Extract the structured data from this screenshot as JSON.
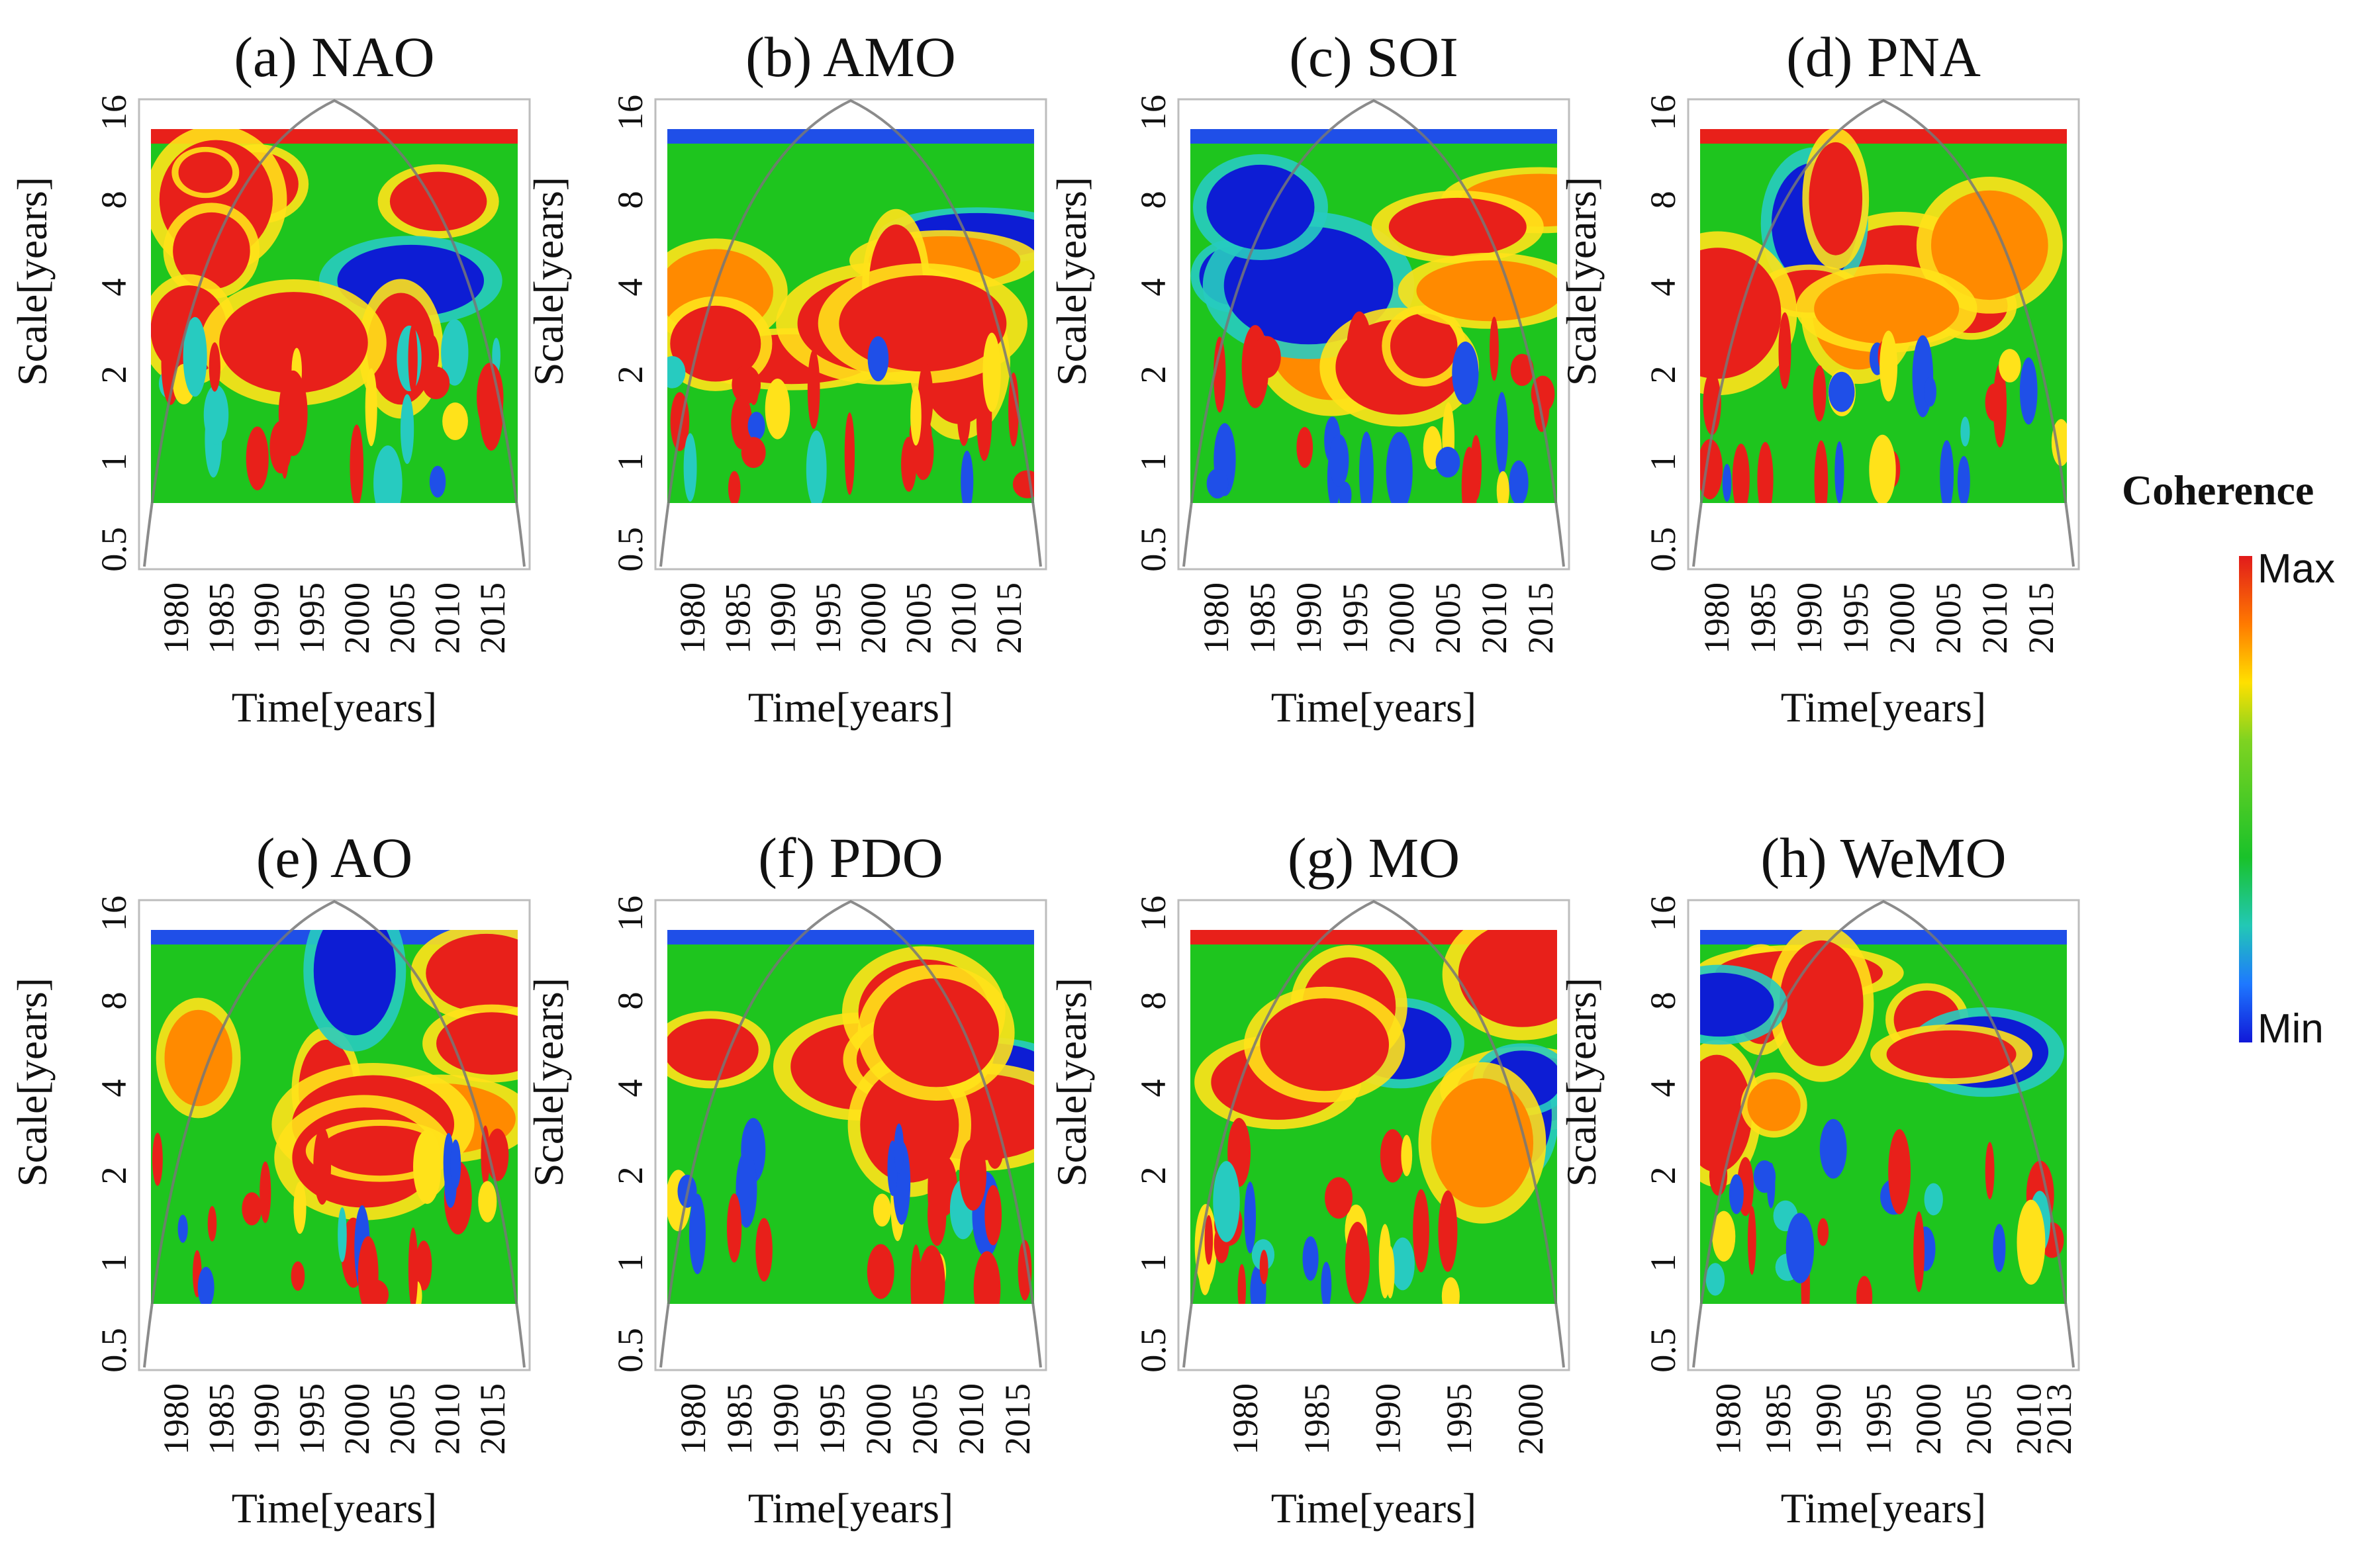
{
  "chart_data": [
    {
      "type": "heatmap",
      "panel": "a",
      "title": "(a) NAO",
      "xlabel": "Time[years]",
      "ylabel": "Scale[years]",
      "yticks": [
        "16",
        "8",
        "4",
        "2",
        "1",
        "0.5"
      ],
      "xticks": [
        "1980",
        "1985",
        "1990",
        "1995",
        "2000",
        "2005",
        "2010",
        "2015"
      ],
      "xlim": [
        1977,
        2018
      ],
      "ylim": [
        0.5,
        16
      ],
      "yscale": "log2"
    },
    {
      "type": "heatmap",
      "panel": "b",
      "title": "(b) AMO",
      "xlabel": "Time[years]",
      "ylabel": "Scale[years]",
      "yticks": [
        "16",
        "8",
        "4",
        "2",
        "1",
        "0.5"
      ],
      "xticks": [
        "1980",
        "1985",
        "1990",
        "1995",
        "2000",
        "2005",
        "2010",
        "2015"
      ],
      "xlim": [
        1977,
        2018
      ],
      "ylim": [
        0.5,
        16
      ],
      "yscale": "log2"
    },
    {
      "type": "heatmap",
      "panel": "c",
      "title": "(c) SOI",
      "xlabel": "Time[years]",
      "ylabel": "Scale[years]",
      "yticks": [
        "16",
        "8",
        "4",
        "2",
        "1",
        "0.5"
      ],
      "xticks": [
        "1980",
        "1985",
        "1990",
        "1995",
        "2000",
        "2005",
        "2010",
        "2015"
      ],
      "xlim": [
        1977,
        2017
      ],
      "ylim": [
        0.5,
        16
      ],
      "yscale": "log2"
    },
    {
      "type": "heatmap",
      "panel": "d",
      "title": "(d) PNA",
      "xlabel": "Time[years]",
      "ylabel": "Scale[years]",
      "yticks": [
        "16",
        "8",
        "4",
        "2",
        "1",
        "0.5"
      ],
      "xticks": [
        "1980",
        "1985",
        "1990",
        "1995",
        "2000",
        "2005",
        "2010",
        "2015"
      ],
      "xlim": [
        1978,
        2018
      ],
      "ylim": [
        0.5,
        16
      ],
      "yscale": "log2"
    },
    {
      "type": "heatmap",
      "panel": "e",
      "title": "(e) AO",
      "xlabel": "Time[years]",
      "ylabel": "Scale[years]",
      "yticks": [
        "16",
        "8",
        "4",
        "2",
        "1",
        "0.5"
      ],
      "xticks": [
        "1980",
        "1985",
        "1990",
        "1995",
        "2000",
        "2005",
        "2010",
        "2015"
      ],
      "xlim": [
        1977,
        2018
      ],
      "ylim": [
        0.5,
        16
      ],
      "yscale": "log2"
    },
    {
      "type": "heatmap",
      "panel": "f",
      "title": "(f) PDO",
      "xlabel": "Time[years]",
      "ylabel": "Scale[years]",
      "yticks": [
        "16",
        "8",
        "4",
        "2",
        "1",
        "0.5"
      ],
      "xticks": [
        "1980",
        "1985",
        "1990",
        "1995",
        "2000",
        "2005",
        "2010",
        "2015"
      ],
      "xlim": [
        1977,
        2017
      ],
      "ylim": [
        0.5,
        16
      ],
      "yscale": "log2"
    },
    {
      "type": "heatmap",
      "panel": "g",
      "title": "(g) MO",
      "xlabel": "Time[years]",
      "ylabel": "Scale[years]",
      "yticks": [
        "16",
        "8",
        "4",
        "2",
        "1",
        "0.5"
      ],
      "xticks": [
        "1980",
        "1985",
        "1990",
        "1995",
        "2000"
      ],
      "xlim": [
        1976,
        2002
      ],
      "ylim": [
        0.5,
        16
      ],
      "yscale": "log2"
    },
    {
      "type": "heatmap",
      "panel": "h",
      "title": "(h) WeMO",
      "xlabel": "Time[years]",
      "ylabel": "Scale[years]",
      "yticks": [
        "16",
        "8",
        "4",
        "2",
        "1",
        "0.5"
      ],
      "xticks": [
        "1980",
        "1985",
        "1990",
        "1995",
        "2000",
        "2005",
        "2010",
        "2013"
      ],
      "xlim": [
        1977,
        2014
      ],
      "ylim": [
        0.5,
        16
      ],
      "yscale": "log2"
    }
  ],
  "colorbar": {
    "title": "Coherence",
    "max_label": "Max",
    "min_label": "Min",
    "colors": [
      "#e11b1b",
      "#ff7a00",
      "#ffe000",
      "#7ed321",
      "#19c22a",
      "#22c8b5",
      "#1e78ff",
      "#1018d8"
    ]
  }
}
